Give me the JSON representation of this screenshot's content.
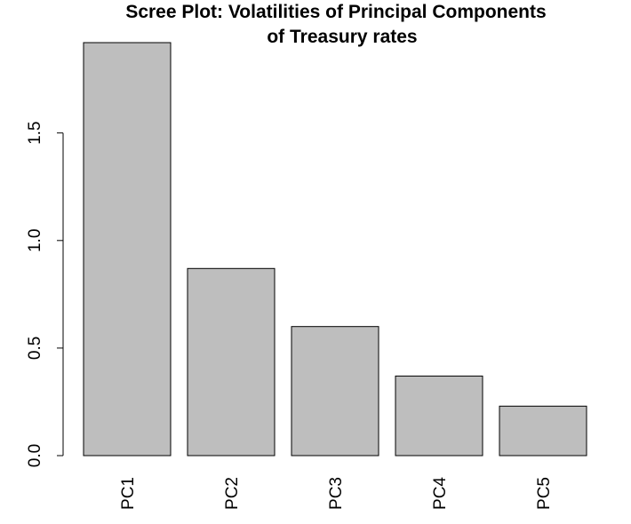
{
  "chart_data": {
    "type": "bar",
    "title_lines": [
      "Scree Plot: Volatilities of Principal Components",
      "of Treasury rates"
    ],
    "xlabel": "",
    "ylabel": "",
    "categories": [
      "PC1",
      "PC2",
      "PC3",
      "PC4",
      "PC5"
    ],
    "values": [
      1.92,
      0.87,
      0.6,
      0.37,
      0.23
    ],
    "ylim": [
      0,
      1.92
    ],
    "yticks": [
      0.0,
      0.5,
      1.0,
      1.5
    ],
    "ytick_labels": [
      "0.0",
      "0.5",
      "1.0",
      "1.5"
    ],
    "grid": false,
    "bar_color": "#bebebe",
    "edge_color": "#000000"
  }
}
